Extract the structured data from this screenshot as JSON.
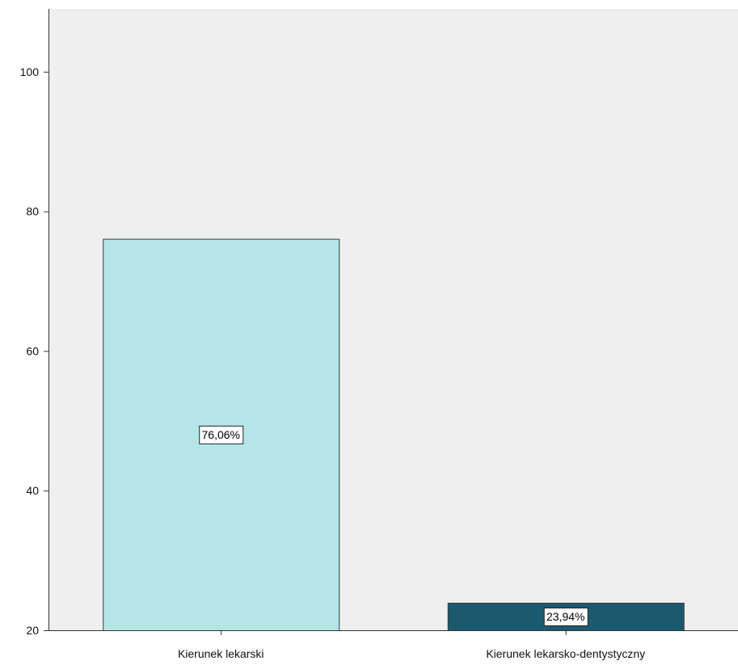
{
  "chart_data": {
    "type": "bar",
    "categories": [
      "Kierunek lekarski",
      "Kierunek lekarsko-dentystyczny"
    ],
    "values": [
      76.06,
      23.94
    ],
    "data_labels": [
      "76,06%",
      "23,94%"
    ],
    "ylim": [
      20,
      109
    ],
    "y_ticks": [
      "20",
      "40",
      "60",
      "80",
      "100"
    ],
    "y_tick_values": [
      20,
      40,
      60,
      80,
      100
    ],
    "grid": false,
    "legend": "none",
    "colors": {
      "plot_background": "#efefef",
      "bars": [
        "#b4e6e8",
        "#1b5a6e"
      ],
      "bar_stroke": "#3a3a3a",
      "label_box": "#ffffff",
      "axis": "#333333"
    }
  }
}
